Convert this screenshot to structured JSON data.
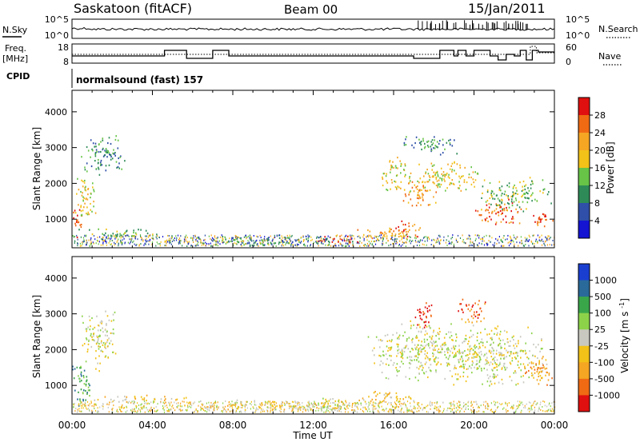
{
  "header": {
    "station": "Saskatoon (fitACF)",
    "beam": "Beam 00",
    "date": "15/Jan/2011"
  },
  "noise_panel": {
    "left_label": "N.Sky",
    "left_ticks": [
      "10^5",
      "10^0"
    ],
    "right_label": "N.Search",
    "right_ticks": [
      "10^5",
      "10^0"
    ]
  },
  "freq_panel": {
    "left_label_line1": "Freq.",
    "left_label_line2": "[MHz]",
    "left_ticks": [
      "18",
      "8"
    ],
    "right_label": "Nave",
    "right_ticks": [
      "60",
      "0"
    ]
  },
  "cpid_panel": {
    "label": "CPID",
    "program": "normalsound (fast) 157"
  },
  "x_axis": {
    "ticks": [
      "00:00",
      "04:00",
      "08:00",
      "12:00",
      "16:00",
      "20:00",
      "00:00"
    ],
    "label": "Time UT"
  },
  "power_colorbar": {
    "label": "Power [dB]",
    "ticks": [
      "4",
      "8",
      "12",
      "16",
      "20",
      "24",
      "28"
    ],
    "colors": [
      "#1414d2",
      "#2f4fa8",
      "#2e8b57",
      "#67c447",
      "#f2c218",
      "#f5a623",
      "#f06a14",
      "#e01010"
    ]
  },
  "velocity_colorbar": {
    "label": "Velocity [m s^-1]",
    "ticks": [
      "1000",
      "500",
      "100",
      "25",
      "-25",
      "-100",
      "-500",
      "-1000"
    ],
    "colors": [
      "#1a3fd0",
      "#2a6a9a",
      "#3aa64a",
      "#8dd34a",
      "#c8c8c0",
      "#f2c218",
      "#f5a623",
      "#f06a14",
      "#e01010"
    ]
  },
  "chart_data": [
    {
      "type": "heatmap",
      "name": "power",
      "ylabel": "Slant Range [km]",
      "yticks": [
        1000,
        2000,
        3000,
        4000
      ],
      "ylim": [
        200,
        4600
      ],
      "xlim_hours": [
        0,
        24
      ],
      "blobs": [
        {
          "t": 0.2,
          "r": 950,
          "dt": 0.3,
          "dr": 500,
          "level": 7
        },
        {
          "t": 0.6,
          "r": 1600,
          "dt": 0.6,
          "dr": 700,
          "level": 4
        },
        {
          "t": 1.6,
          "r": 2800,
          "dt": 1.2,
          "dr": 600,
          "level": 2
        },
        {
          "t": 2.5,
          "r": 650,
          "dt": 2.5,
          "dr": 120,
          "level": 3
        },
        {
          "t": 10,
          "r": 400,
          "dt": 5,
          "dr": 150,
          "level": 2
        },
        {
          "t": 13.3,
          "r": 450,
          "dt": 1.2,
          "dr": 160,
          "level": 7
        },
        {
          "t": 15.5,
          "r": 600,
          "dt": 1.4,
          "dr": 250,
          "level": 5
        },
        {
          "t": 16.7,
          "r": 750,
          "dt": 0.8,
          "dr": 250,
          "level": 6
        },
        {
          "t": 16.0,
          "r": 2300,
          "dt": 0.8,
          "dr": 500,
          "level": 4
        },
        {
          "t": 17.2,
          "r": 1700,
          "dt": 1.0,
          "dr": 400,
          "level": 5
        },
        {
          "t": 18.5,
          "r": 2200,
          "dt": 2.0,
          "dr": 500,
          "level": 4
        },
        {
          "t": 21.2,
          "r": 1200,
          "dt": 1.3,
          "dr": 400,
          "level": 6
        },
        {
          "t": 23.4,
          "r": 1000,
          "dt": 0.7,
          "dr": 250,
          "level": 6
        },
        {
          "t": 22.0,
          "r": 1700,
          "dt": 2.0,
          "dr": 500,
          "level": 3
        },
        {
          "t": 17.8,
          "r": 3100,
          "dt": 1.5,
          "dr": 300,
          "level": 2
        }
      ]
    },
    {
      "type": "heatmap",
      "name": "velocity",
      "ylabel": "Slant Range [km]",
      "yticks": [
        1000,
        2000,
        3000,
        4000
      ],
      "ylim": [
        200,
        4600
      ],
      "xlim_hours": [
        0,
        24
      ],
      "blobs": [
        {
          "t": 0.4,
          "r": 1000,
          "dt": 0.6,
          "dr": 700,
          "level": 2
        },
        {
          "t": 1.3,
          "r": 2300,
          "dt": 1.0,
          "dr": 900,
          "level": 4
        },
        {
          "t": 3.5,
          "r": 650,
          "dt": 2.5,
          "dr": 120,
          "level": 5
        },
        {
          "t": 10.5,
          "r": 450,
          "dt": 5,
          "dr": 180,
          "level": 5
        },
        {
          "t": 13.0,
          "r": 500,
          "dt": 1.5,
          "dr": 220,
          "level": 4
        },
        {
          "t": 15.8,
          "r": 650,
          "dt": 1.5,
          "dr": 250,
          "level": 5
        },
        {
          "t": 17.5,
          "r": 2000,
          "dt": 3.0,
          "dr": 900,
          "level": 4
        },
        {
          "t": 21.0,
          "r": 1800,
          "dt": 3.0,
          "dr": 900,
          "level": 4
        },
        {
          "t": 17.5,
          "r": 3000,
          "dt": 0.6,
          "dr": 400,
          "level": 8
        },
        {
          "t": 19.8,
          "r": 3100,
          "dt": 0.8,
          "dr": 400,
          "level": 7
        },
        {
          "t": 23.2,
          "r": 1400,
          "dt": 0.8,
          "dr": 500,
          "level": 6
        }
      ]
    }
  ]
}
